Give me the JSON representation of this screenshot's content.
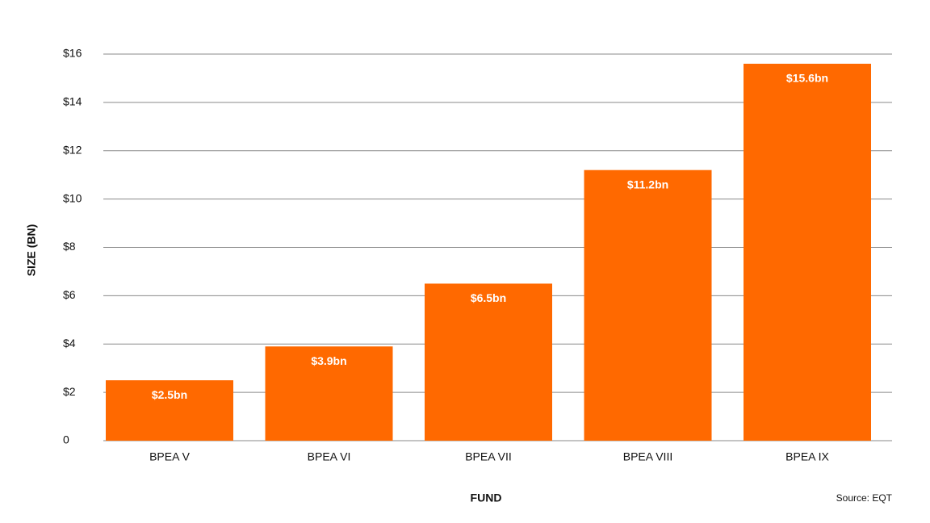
{
  "chart_data": {
    "type": "bar",
    "categories": [
      "BPEA V",
      "BPEA VI",
      "BPEA VII",
      "BPEA VIII",
      "BPEA IX"
    ],
    "values": [
      2.5,
      3.9,
      6.5,
      11.2,
      15.6
    ],
    "value_labels": [
      "$2.5bn",
      "$3.9bn",
      "$6.5bn",
      "$11.2bn",
      "$15.6bn"
    ],
    "color": "#ff6900",
    "ylim": [
      0,
      16
    ],
    "yticks": [
      0,
      {
        "value": 2,
        "label": "$2"
      },
      {
        "value": 4,
        "label": "$4"
      },
      {
        "value": 6,
        "label": "$6"
      },
      {
        "value": 8,
        "label": "$8"
      },
      {
        "value": 10,
        "label": "$10"
      },
      {
        "value": 12,
        "label": "$12"
      },
      {
        "value": 14,
        "label": "$14"
      },
      {
        "value": 16,
        "label": "$16"
      }
    ],
    "grid": true,
    "y_label": "SIZE (BN)",
    "x_label": "FUND",
    "source": "Source: EQT"
  }
}
